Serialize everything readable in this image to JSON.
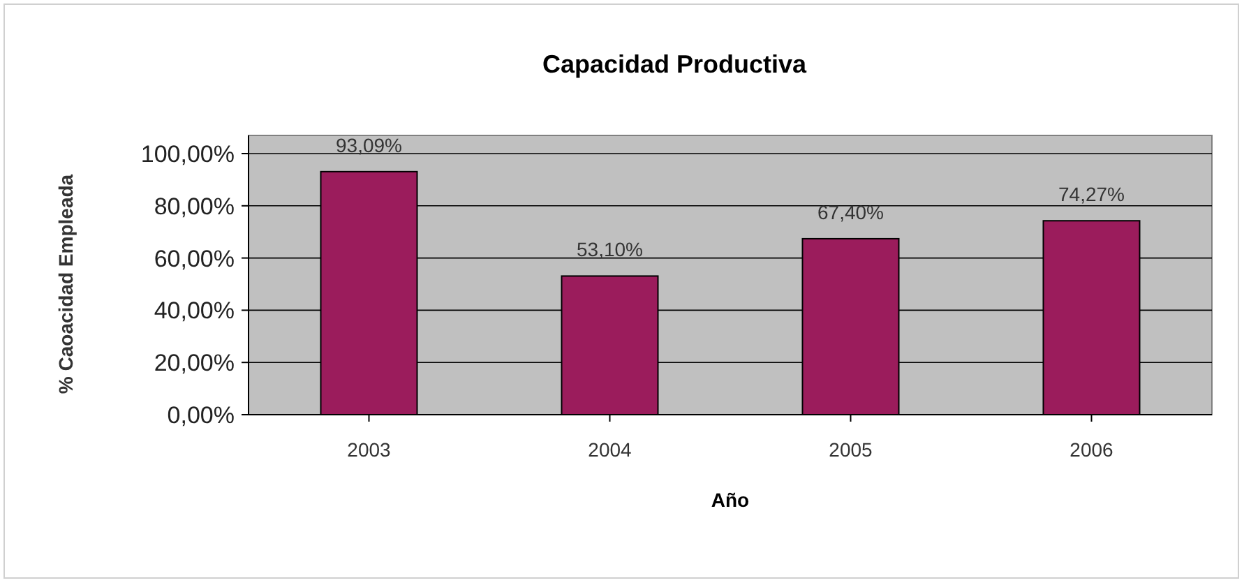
{
  "chart_data": {
    "type": "bar",
    "title": "Capacidad Productiva",
    "xlabel": "Año",
    "ylabel": "% Caoacidad Empleada",
    "categories": [
      "2003",
      "2004",
      "2005",
      "2006"
    ],
    "values": [
      93.09,
      53.1,
      67.4,
      74.27
    ],
    "value_labels": [
      "93,09%",
      "53,10%",
      "67,40%",
      "74,27%"
    ],
    "color": "#9b1c5c",
    "ylim": [
      0,
      100
    ],
    "yticks": [
      {
        "value": 0,
        "label": "0,00%"
      },
      {
        "value": 20,
        "label": "20,00%"
      },
      {
        "value": 40,
        "label": "40,00%"
      },
      {
        "value": 60,
        "label": "60,00%"
      },
      {
        "value": 80,
        "label": "80,00%"
      },
      {
        "value": 100,
        "label": "100,00%"
      }
    ],
    "grid": "y"
  }
}
